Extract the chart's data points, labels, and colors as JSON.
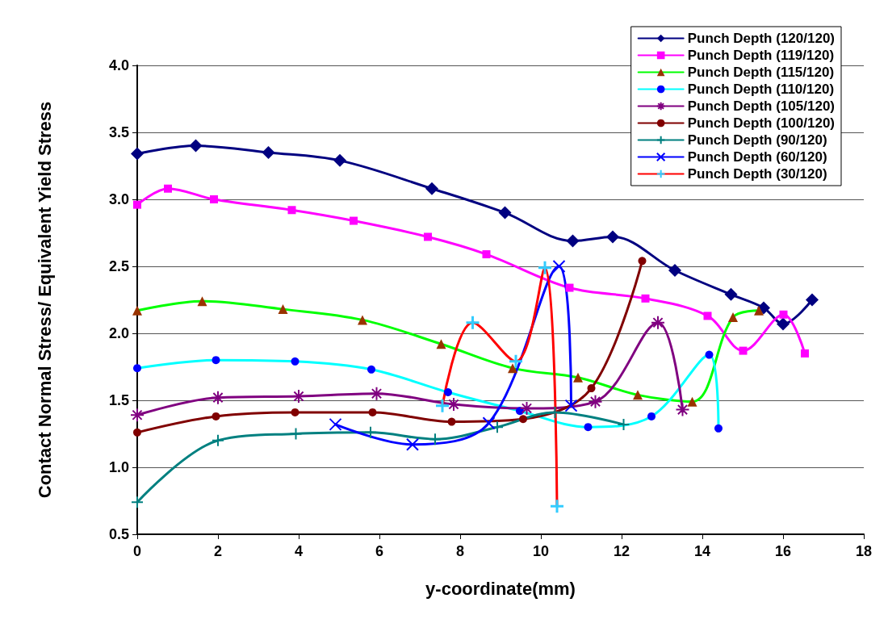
{
  "chart_data": {
    "type": "line",
    "xlabel": "y-coordinate(mm)",
    "ylabel": "Contact Normal Stress/ Equivalent Yield Stress",
    "xlim": [
      0,
      18
    ],
    "xticks": [
      0,
      2,
      4,
      6,
      8,
      10,
      12,
      14,
      16,
      18
    ],
    "ylim": [
      0.5,
      4
    ],
    "yticks": [
      0.5,
      {
        "value": 1,
        "label": "1.0"
      },
      1.5,
      {
        "value": 2,
        "label": "2.0"
      },
      2.5,
      {
        "value": 3,
        "label": "3.0"
      },
      3.5,
      {
        "value": 4,
        "label": "4.0"
      }
    ],
    "grid": "y",
    "legend": "top right",
    "line_style": "solid",
    "series": [
      {
        "name": "Punch Depth (120/120)",
        "color": "#000080",
        "marker": "diamond",
        "x": [
          0,
          1.45,
          3.25,
          5.02,
          7.3,
          9.11,
          10.79,
          11.78,
          13.32,
          14.71,
          15.52,
          16.0,
          16.72
        ],
        "values": [
          3.34,
          3.4,
          3.35,
          3.29,
          3.08,
          2.9,
          2.69,
          2.72,
          2.47,
          2.29,
          2.19,
          2.07,
          2.25
        ]
      },
      {
        "name": "Punch Depth (119/120)",
        "color": "#ff00ff",
        "marker": "square",
        "x": [
          0,
          0.76,
          1.9,
          3.83,
          5.36,
          7.2,
          8.65,
          10.71,
          12.59,
          14.13,
          15.01,
          16.01,
          16.54
        ],
        "values": [
          2.96,
          3.08,
          3.0,
          2.92,
          2.84,
          2.72,
          2.59,
          2.34,
          2.26,
          2.13,
          1.87,
          2.14,
          1.85
        ]
      },
      {
        "name": "Punch Depth (115/120)",
        "color": "#00ff00",
        "marker": "triangle",
        "colors": [
          "#993300",
          "#993300",
          "#993300",
          "#993300",
          "#993300",
          "#993300",
          "#993300",
          "#993300",
          "#993300",
          "#993300",
          "#993300"
        ],
        "x": [
          0,
          1.61,
          3.61,
          5.58,
          7.53,
          9.3,
          10.92,
          12.4,
          13.75,
          14.76,
          15.4
        ],
        "values": [
          2.17,
          2.24,
          2.18,
          2.1,
          1.92,
          1.74,
          1.67,
          1.54,
          1.49,
          2.12,
          2.17
        ]
      },
      {
        "name": "Punch Depth (110/120)",
        "color": "#00ffff",
        "marker": "circle",
        "colors": [
          "#0000ff",
          "#0000ff",
          "#0000ff",
          "#0000ff",
          "#0000ff",
          "#0000ff",
          "#0000ff",
          "#0000ff",
          "#0000ff",
          "#0000ff"
        ],
        "x": [
          0,
          1.95,
          3.91,
          5.8,
          7.7,
          9.48,
          11.17,
          12.74,
          14.17,
          14.4
        ],
        "values": [
          1.74,
          1.8,
          1.79,
          1.73,
          1.56,
          1.42,
          1.3,
          1.38,
          1.84,
          1.29
        ]
      },
      {
        "name": "Punch Depth (105/120)",
        "color": "#800080",
        "marker": "cross",
        "x": [
          0,
          2.0,
          4.0,
          5.93,
          7.84,
          9.65,
          11.35,
          12.9,
          13.51
        ],
        "values": [
          1.39,
          1.52,
          1.53,
          1.55,
          1.47,
          1.44,
          1.49,
          2.08,
          1.43
        ]
      },
      {
        "name": "Punch Depth (100/120)",
        "color": "#800000",
        "marker": "circle",
        "x": [
          0,
          1.95,
          3.91,
          5.83,
          7.79,
          9.56,
          11.25,
          12.51
        ],
        "values": [
          1.26,
          1.38,
          1.41,
          1.41,
          1.34,
          1.36,
          1.59,
          2.54
        ]
      },
      {
        "name": "Punch Depth (90/120)",
        "color": "#008080",
        "marker": "cross",
        "x": [
          0,
          2.0,
          3.93,
          5.78,
          7.38,
          8.92,
          10.35,
          12.05
        ],
        "values": [
          0.74,
          1.2,
          1.25,
          1.26,
          1.21,
          1.3,
          1.41,
          1.32
        ]
      },
      {
        "name": "Punch Depth (60/120)",
        "color": "#0000ff",
        "marker": "cross",
        "x": [
          4.91,
          6.82,
          8.71,
          10.45,
          10.75
        ],
        "values": [
          1.32,
          1.17,
          1.33,
          2.5,
          1.46
        ]
      },
      {
        "name": "Punch Depth (30/120)",
        "color": "#ff0000",
        "marker": "cross",
        "colors": [
          "#33ccff",
          "#33ccff",
          "#33ccff",
          "#33ccff",
          "#33ccff"
        ],
        "x": [
          7.56,
          8.31,
          9.38,
          10.1,
          10.4
        ],
        "values": [
          1.46,
          2.08,
          1.79,
          2.49,
          0.71
        ]
      }
    ]
  }
}
